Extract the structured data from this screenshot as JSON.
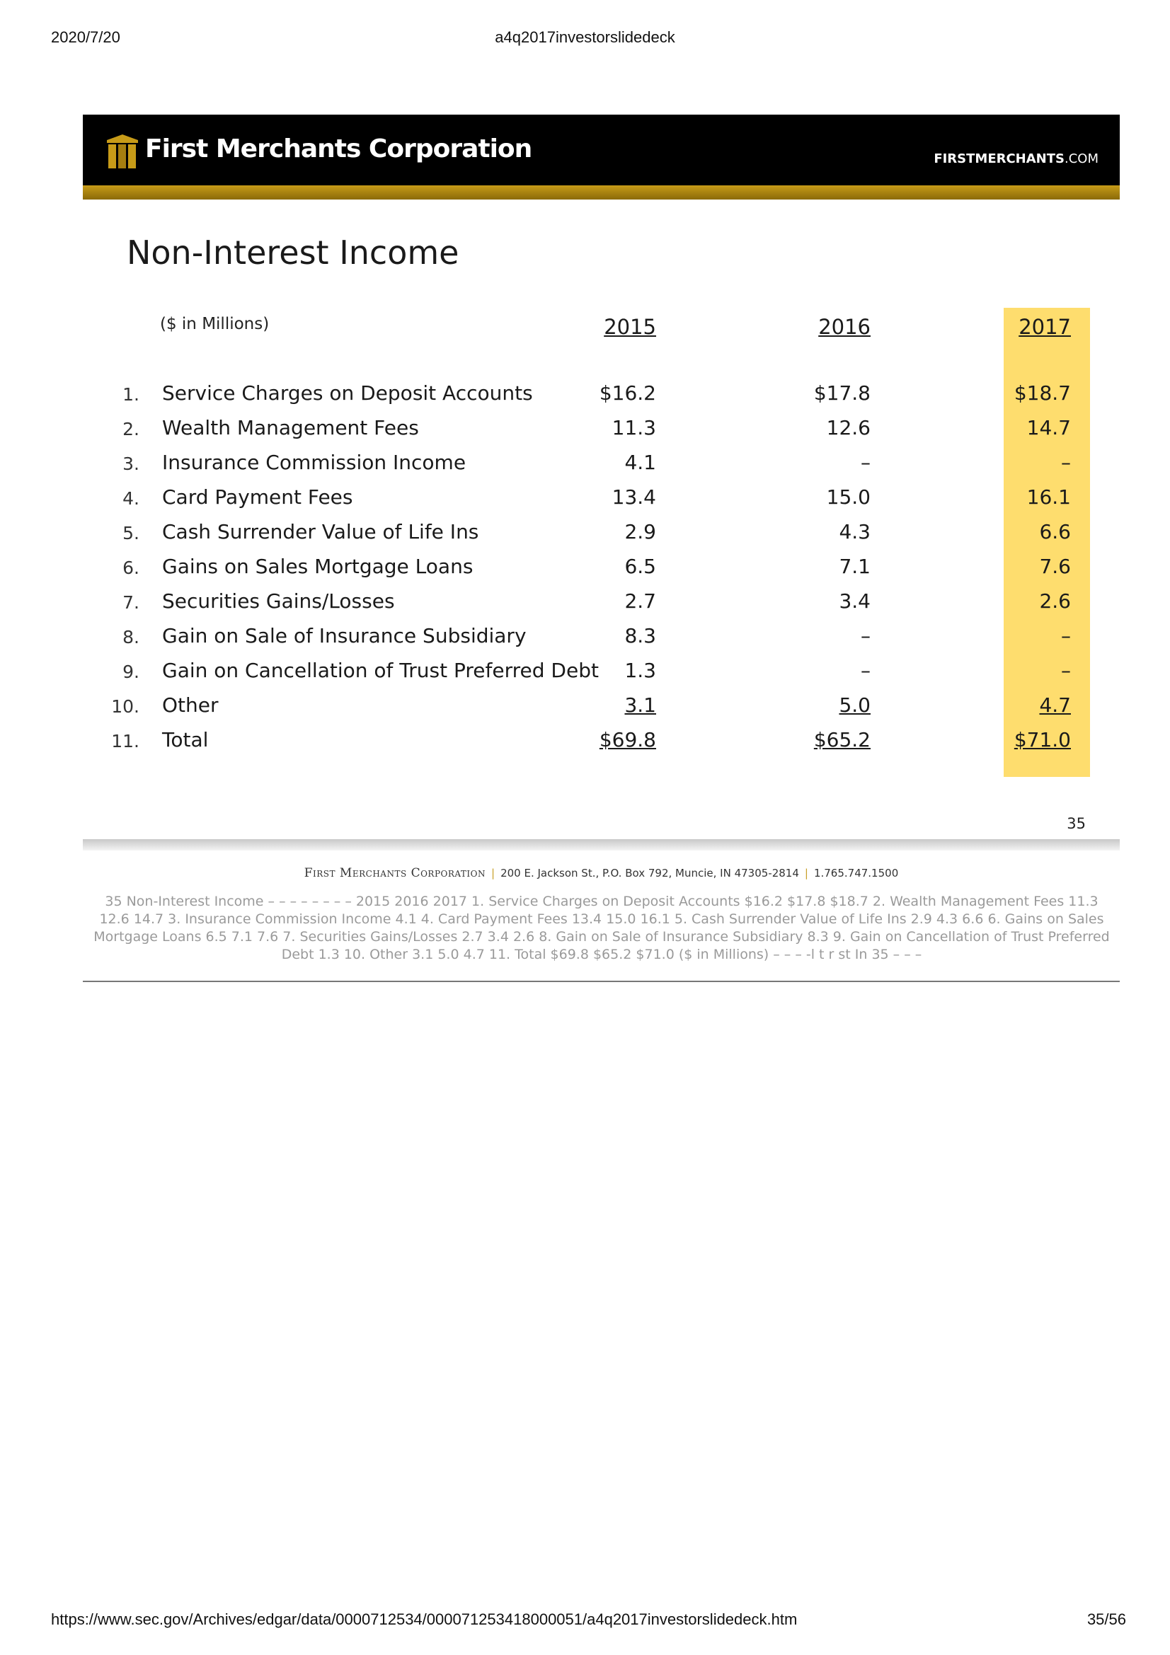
{
  "print_header": {
    "date": "2020/7/20",
    "title": "a4q2017investorslidedeck"
  },
  "print_footer": {
    "url": "https://www.sec.gov/Archives/edgar/data/0000712534/000071253418000051/a4q2017investorslidedeck.htm",
    "page": "35/56"
  },
  "banner": {
    "brand_name": "First Merchants Corporation",
    "brand_url_main": "FIRSTMERCHANTS",
    "brand_url_suffix": ".COM",
    "accent_color": "#c79b18"
  },
  "slide": {
    "title": "Non-Interest Income",
    "units": "($ in Millions)",
    "years": [
      "2015",
      "2016",
      "2017"
    ],
    "highlight_color": "#fedd6e",
    "rows": [
      {
        "num": "1.",
        "label": "Service Charges on Deposit Accounts",
        "v2015": "$16.2",
        "v2016": "$17.8",
        "v2017": "$18.7"
      },
      {
        "num": "2.",
        "label": "Wealth Management Fees",
        "v2015": "11.3",
        "v2016": "12.6",
        "v2017": "14.7"
      },
      {
        "num": "3.",
        "label": "Insurance Commission Income",
        "v2015": "4.1",
        "v2016": "–",
        "v2017": "–"
      },
      {
        "num": "4.",
        "label": "Card Payment Fees",
        "v2015": "13.4",
        "v2016": "15.0",
        "v2017": "16.1"
      },
      {
        "num": "5.",
        "label": "Cash Surrender Value of Life Ins",
        "v2015": "2.9",
        "v2016": "4.3",
        "v2017": "6.6"
      },
      {
        "num": "6.",
        "label": "Gains on Sales Mortgage Loans",
        "v2015": "6.5",
        "v2016": "7.1",
        "v2017": "7.6"
      },
      {
        "num": "7.",
        "label": "Securities Gains/Losses",
        "v2015": "2.7",
        "v2016": "3.4",
        "v2017": "2.6"
      },
      {
        "num": "8.",
        "label": "Gain on Sale of Insurance Subsidiary",
        "v2015": "8.3",
        "v2016": "–",
        "v2017": "–"
      },
      {
        "num": "9.",
        "label": "Gain on Cancellation of Trust Preferred Debt",
        "v2015": "1.3",
        "v2016": "–",
        "v2017": "–"
      },
      {
        "num": "10.",
        "label": "Other",
        "v2015": "3.1",
        "v2016": "5.0",
        "v2017": "4.7"
      },
      {
        "num": "11.",
        "label": "Total",
        "v2015": "$69.8",
        "v2016": "$65.2",
        "v2017": "$71.0"
      }
    ],
    "page_number": "35",
    "footer": {
      "corp": "First Merchants Corporation",
      "address": "200 E. Jackson St., P.O. Box 792, Muncie, IN 47305-2814",
      "phone": "1.765.747.1500"
    }
  },
  "ocr_text": "35  Non-Interest Income  – – – – – – – –   2015 2016 2017  1. Service Charges on Deposit Accounts $16.2 $17.8 $18.7  2. Wealth Management Fees 11.3 12.6 14.7  3. Insurance Commission Income 4.1  4. Card Payment Fees 13.4 15.0 16.1  5. Cash Surrender Value of Life Ins 2.9 4.3 6.6  6. Gains on Sales Mortgage Loans 6.5 7.1 7.6  7. Securities Gains/Losses 2.7 3.4 2.6  8. Gain on Sale of Insurance Subsidiary 8.3  9. Gain on Cancellation of Trust Preferred Debt 1.3  10. Other 3.1 5.0 4.7  11. Total $69.8 $65.2 $71.0   ($ in Millions)  – – –  -l t r st In  35  – – –"
}
